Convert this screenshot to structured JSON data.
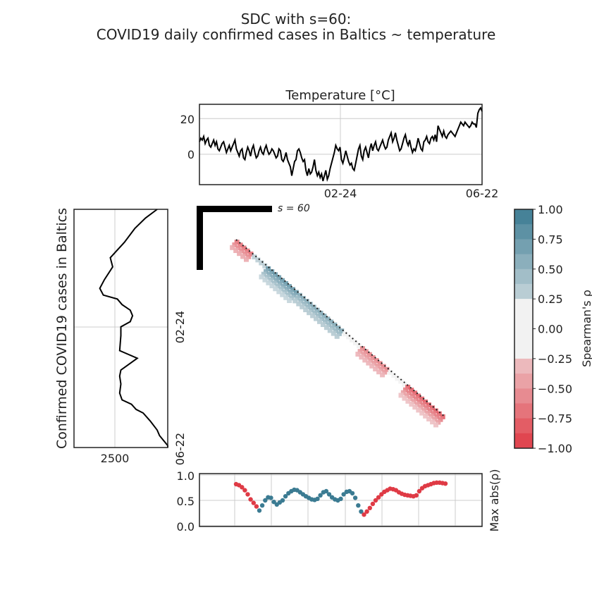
{
  "title": {
    "line1": "SDC with s=60:",
    "line2": "COVID19 daily confirmed cases in Baltics ~ temperature"
  },
  "colors": {
    "positive": "#3b7b92",
    "negative": "#df3a45",
    "series_line": "#000000",
    "grid": "#cccccc"
  },
  "chart_data": [
    {
      "id": "temperature",
      "type": "line",
      "title": "Temperature [°C]",
      "x_tick_labels": [
        "02-24",
        "06-22"
      ],
      "y_ticks": [
        0,
        20
      ],
      "ylim": [
        -17,
        28
      ],
      "grid": true,
      "values": [
        7,
        9,
        8,
        10,
        6,
        8,
        9,
        5,
        4,
        6,
        8,
        5,
        7,
        3,
        2,
        4,
        6,
        7,
        4,
        1,
        3,
        5,
        2,
        4,
        6,
        8,
        3,
        1,
        -1,
        2,
        3,
        -2,
        -3,
        1,
        4,
        2,
        -1,
        3,
        5,
        1,
        -2,
        -1,
        2,
        4,
        1,
        0,
        3,
        5,
        2,
        0,
        1,
        3,
        2,
        0,
        -2,
        -1,
        3,
        2,
        -3,
        -4,
        -2,
        1,
        -3,
        -5,
        -7,
        -12,
        -8,
        -4,
        -3,
        2,
        3,
        1,
        -2,
        -4,
        -3,
        -9,
        -12,
        -8,
        -11,
        -10,
        -7,
        -3,
        -9,
        -12,
        -10,
        -13,
        -11,
        -15,
        -12,
        -9,
        -14,
        -12,
        -8,
        -5,
        -2,
        1,
        5,
        3,
        2,
        4,
        -3,
        -5,
        -2,
        2,
        -1,
        -4,
        -6,
        -5,
        -8,
        -9,
        -5,
        -1,
        3,
        5,
        -1,
        -3,
        2,
        4,
        1,
        -2,
        3,
        6,
        2,
        5,
        7,
        3,
        2,
        4,
        6,
        8,
        5,
        3,
        4,
        8,
        10,
        12,
        7,
        9,
        12,
        8,
        5,
        2,
        3,
        6,
        9,
        11,
        7,
        5,
        8,
        4,
        1,
        3,
        2,
        5,
        9,
        6,
        3,
        2,
        7,
        8,
        10,
        7,
        6,
        9,
        10,
        8,
        11,
        7,
        16,
        14,
        12,
        10,
        13,
        10,
        9,
        11,
        12,
        13,
        12,
        11,
        10,
        12,
        14,
        16,
        18,
        17,
        16,
        18,
        17,
        16,
        15,
        16,
        18,
        17,
        17,
        15,
        23,
        25,
        26,
        24
      ]
    },
    {
      "id": "cases",
      "type": "line",
      "ylabel": "Confirmed COVID19 cases in Baltics",
      "x_ticks": [
        2500
      ],
      "xlim": [
        650,
        4650
      ],
      "y_tick_labels": [
        "02-24",
        "06-22"
      ],
      "grid": true,
      "points": [
        [
          4200,
          0
        ],
        [
          3700,
          22
        ],
        [
          3250,
          48
        ],
        [
          2800,
          83
        ],
        [
          2200,
          122
        ],
        [
          2300,
          145
        ],
        [
          1950,
          177
        ],
        [
          1750,
          199
        ],
        [
          1900,
          216
        ],
        [
          2500,
          226
        ],
        [
          2700,
          240
        ],
        [
          3050,
          254
        ],
        [
          3150,
          268
        ],
        [
          3050,
          283
        ],
        [
          2650,
          296
        ],
        [
          2650,
          318
        ],
        [
          2600,
          356
        ],
        [
          3350,
          375
        ],
        [
          2650,
          405
        ],
        [
          2600,
          420
        ],
        [
          2650,
          440
        ],
        [
          2600,
          463
        ],
        [
          2700,
          480
        ],
        [
          3100,
          491
        ],
        [
          3300,
          504
        ],
        [
          3600,
          513
        ],
        [
          3900,
          533
        ],
        [
          4200,
          556
        ],
        [
          4300,
          570
        ],
        [
          4650,
          595
        ],
        [
          4650,
          600
        ]
      ]
    },
    {
      "id": "sdc_heatmap",
      "type": "heatmap",
      "window_label": "s = 60",
      "diagonal": "dotted",
      "segments": [
        {
          "from": 0.0,
          "to": 0.08,
          "rho": -0.7
        },
        {
          "from": 0.08,
          "to": 0.15,
          "rho": 0.3
        },
        {
          "from": 0.15,
          "to": 0.3,
          "rho": 0.75
        },
        {
          "from": 0.3,
          "to": 0.52,
          "rho": 0.6
        },
        {
          "from": 0.52,
          "to": 0.6,
          "rho": 0.15
        },
        {
          "from": 0.6,
          "to": 0.73,
          "rho": -0.6
        },
        {
          "from": 0.73,
          "to": 0.82,
          "rho": -0.2
        },
        {
          "from": 0.82,
          "to": 1.0,
          "rho": -0.8
        }
      ]
    },
    {
      "id": "colorbar",
      "type": "colorbar",
      "label": "Spearman's ρ",
      "tick_labels": [
        "1.00",
        "0.75",
        "0.50",
        "0.25",
        "0.00",
        "−0.25",
        "−0.50",
        "−0.75",
        "−1.00"
      ],
      "ticks": [
        1.0,
        0.75,
        0.5,
        0.25,
        0.0,
        -0.25,
        -0.5,
        -0.75,
        -1.0
      ],
      "ylim": [
        -1.0,
        1.0
      ]
    },
    {
      "id": "max_abs_rho",
      "type": "scatter",
      "ylabel": "Max abs(ρ)",
      "y_tick_labels": [
        "1.0",
        "0.5",
        "0.0"
      ],
      "y_ticks": [
        1.0,
        0.5,
        0.0
      ],
      "ylim": [
        0,
        1.0
      ],
      "grid": true,
      "series": [
        {
          "sign": "negative",
          "values": [
            0.82,
            0.8,
            0.76,
            0.7,
            0.62,
            0.52,
            0.45,
            0.38
          ]
        },
        {
          "sign": "positive",
          "values": [
            0.3,
            0.4,
            0.5,
            0.56,
            0.55,
            0.47,
            0.42,
            0.46,
            0.5,
            0.58,
            0.64,
            0.68,
            0.71,
            0.7,
            0.66,
            0.62,
            0.58,
            0.55,
            0.52,
            0.51,
            0.53,
            0.6,
            0.66,
            0.68,
            0.62,
            0.56,
            0.52,
            0.5,
            0.53,
            0.62,
            0.67,
            0.68,
            0.64,
            0.55,
            0.4,
            0.28
          ]
        },
        {
          "sign": "negative",
          "values": [
            0.22,
            0.28,
            0.35,
            0.43,
            0.5,
            0.56,
            0.62,
            0.67,
            0.7,
            0.73,
            0.72,
            0.7,
            0.66,
            0.63,
            0.61,
            0.6,
            0.59,
            0.58,
            0.6,
            0.68,
            0.74,
            0.78,
            0.8,
            0.82,
            0.84,
            0.85,
            0.85,
            0.84,
            0.83
          ]
        }
      ]
    }
  ]
}
